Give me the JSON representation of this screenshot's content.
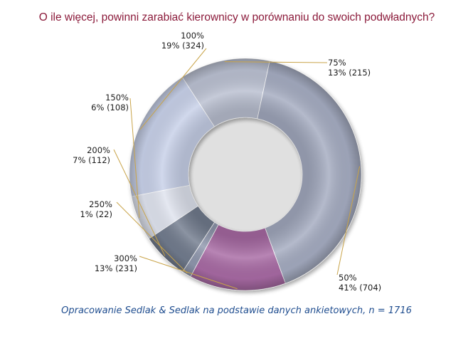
{
  "page": {
    "title": "O ile więcej, powinni zarabiać kierownicy w porównaniu do swoich podwładnych?",
    "footer": "Opracowanie Sedlak & Sedlak na podstawie danych ankietowych, n = 1716"
  },
  "chart_data": {
    "type": "pie",
    "subtype": "donut",
    "title": "O ile więcej, powinni zarabiać kierownicy w porównaniu do swoich podwładnych?",
    "n": 1716,
    "slices": [
      {
        "label": "75%",
        "percent": "13%",
        "count": 215,
        "color": "#b9bfd0"
      },
      {
        "label": "50%",
        "percent": "41%",
        "count": 704,
        "color": "#a4abc0"
      },
      {
        "label": "300%",
        "percent": "13%",
        "count": 231,
        "color": "#a86aa4"
      },
      {
        "label": "250%",
        "percent": "1%",
        "count": 22,
        "color": "#8f97ad"
      },
      {
        "label": "200%",
        "percent": "7%",
        "count": 112,
        "color": "#727b8e"
      },
      {
        "label": "150%",
        "percent": "6%",
        "count": 108,
        "color": "#dfe3ee"
      },
      {
        "label": "100%",
        "percent": "19%",
        "count": 324,
        "color": "#c7d0e8"
      }
    ]
  }
}
